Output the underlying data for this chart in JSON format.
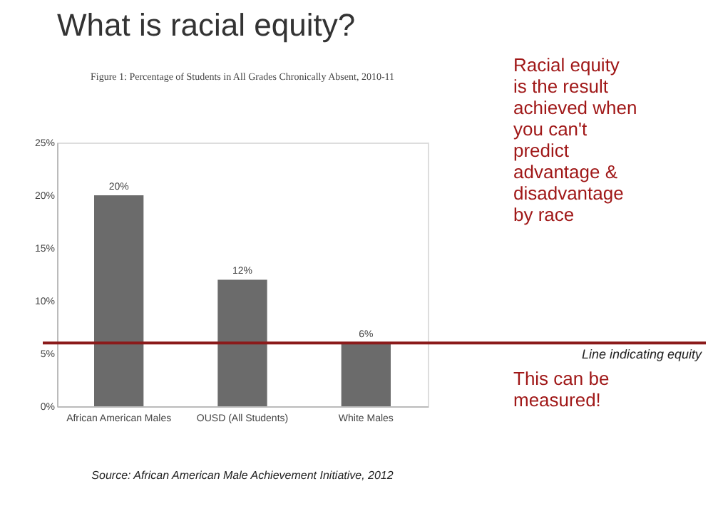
{
  "chart_data": {
    "type": "bar",
    "title": "What is racial equity?",
    "subtitle": "Figure 1: Percentage of Students in All Grades Chronically Absent, 2010-11",
    "categories": [
      "African American Males",
      "OUSD (All Students)",
      "White Males"
    ],
    "values": [
      20,
      12,
      6
    ],
    "color": "#6b6b6b",
    "value_labels": [
      "20%",
      "12%",
      "6%"
    ],
    "ylim": [
      0,
      25
    ],
    "yticks": [
      {
        "value": 0,
        "label": "0%"
      },
      {
        "value": 5,
        "label": "5%"
      },
      {
        "value": 10,
        "label": "10%"
      },
      {
        "value": 15,
        "label": "15%"
      },
      {
        "value": 20,
        "label": "20%"
      },
      {
        "value": 25,
        "label": "25%"
      }
    ],
    "grid": false,
    "ref_lines": [
      {
        "axis": "y",
        "value": 6,
        "label": "Line indicating equity",
        "color": "#8b1a1a"
      }
    ],
    "annotations": [
      "Racial equity is the result achieved when you can't predict advantage & disadvantage by race",
      "This can be measured!",
      "Source: African American Male Achievement Initiative, 2012"
    ]
  }
}
